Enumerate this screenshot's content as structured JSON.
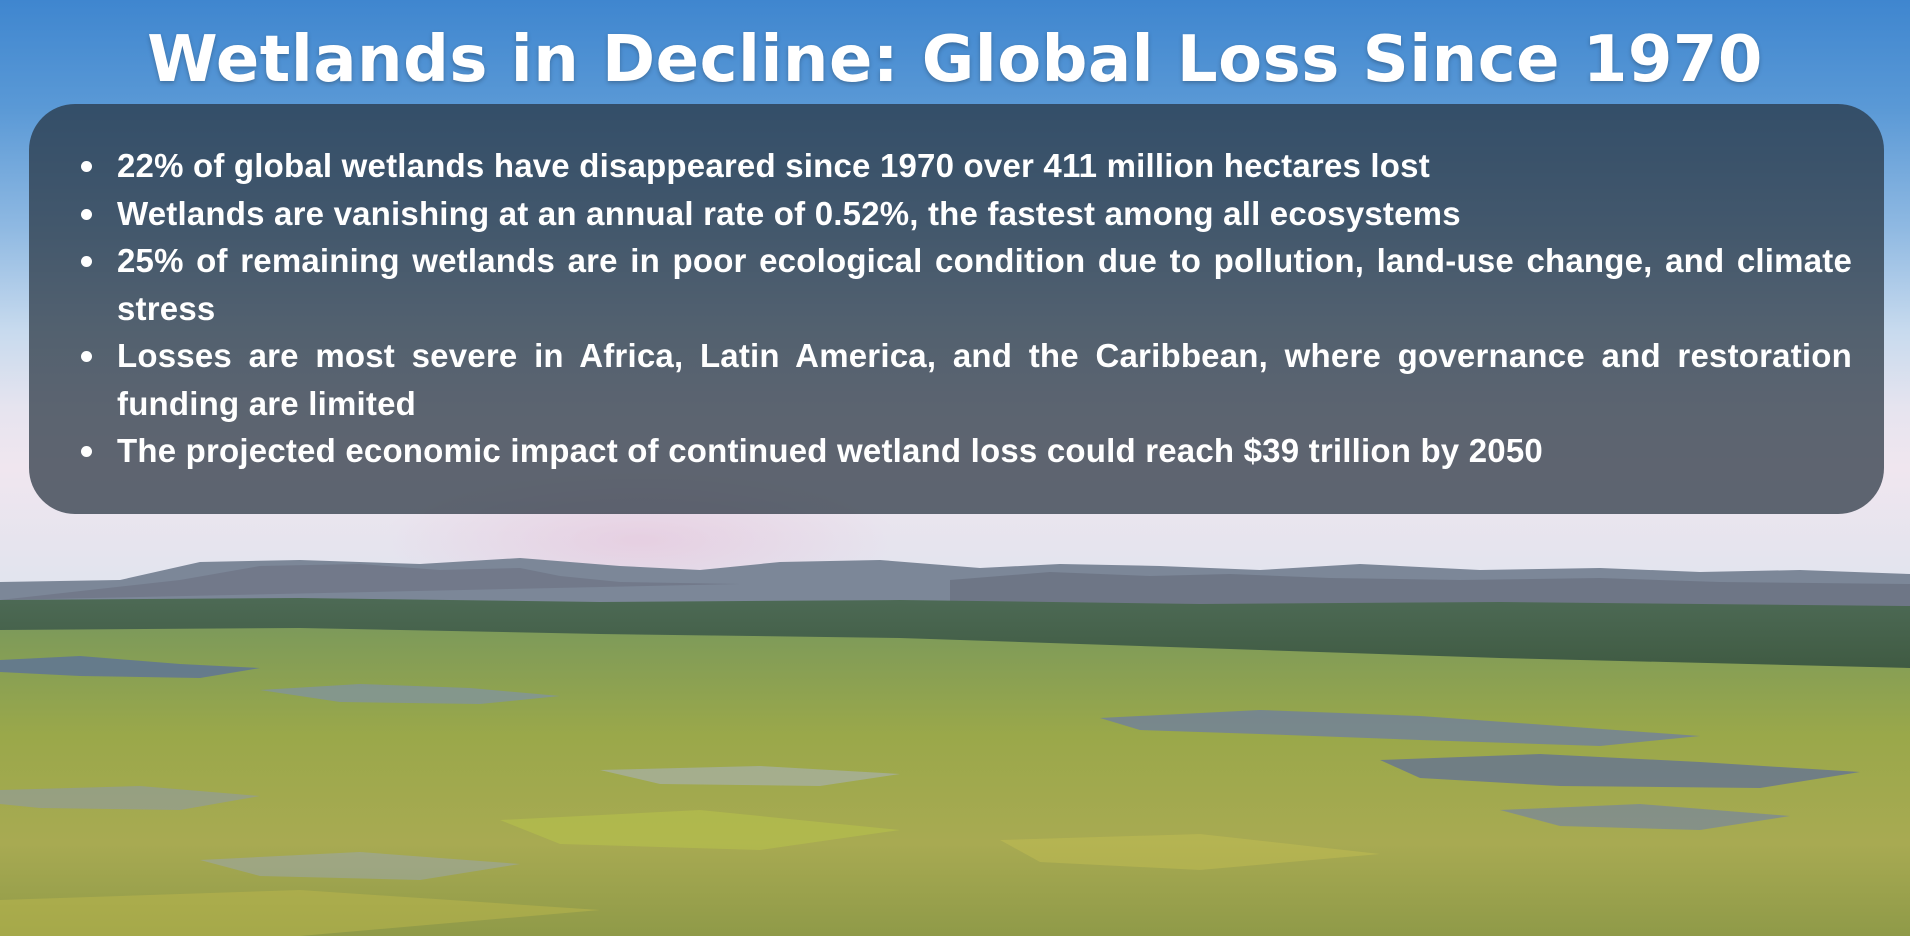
{
  "slide": {
    "title": "Wetlands in Decline: Global Loss Since 1970",
    "bullets": [
      "22% of global wetlands have disappeared since 1970 over 411 million hectares lost",
      "Wetlands are vanishing at an annual rate of 0.52%, the fastest among all ecosystems",
      "25% of remaining wetlands are in poor ecological condition due to pollution, land-use change, and climate stress",
      "Losses are most severe in Africa, Latin America, and the Caribbean, where governance and restoration funding are limited",
      "The projected economic impact of continued wetland loss could reach $39 trillion by 2050"
    ]
  },
  "background": {
    "description_icon": "wetland-landscape-photo",
    "sky_color": "#4a8fd2",
    "panel_color": "#26323e"
  }
}
